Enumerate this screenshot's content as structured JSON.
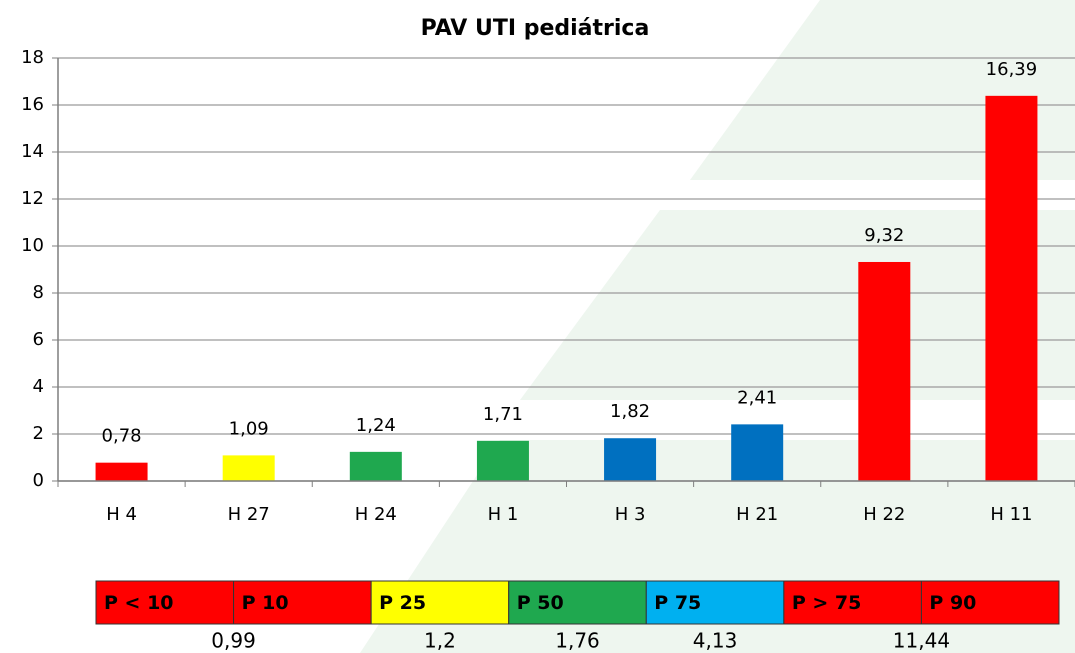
{
  "chart_data": {
    "type": "bar",
    "title": "PAV UTI pediátrica",
    "categories": [
      "H 4",
      "H 27",
      "H 24",
      "H 1",
      "H 3",
      "H 21",
      "H 22",
      "H 11"
    ],
    "values": [
      0.78,
      1.09,
      1.24,
      1.71,
      1.82,
      2.41,
      9.32,
      16.39
    ],
    "value_labels": [
      "0,78",
      "1,09",
      "1,24",
      "1,71",
      "1,82",
      "2,41",
      "9,32",
      "16,39"
    ],
    "colors": [
      "#ff0000",
      "#ffff00",
      "#1fa84f",
      "#1fa84f",
      "#0070c0",
      "#0070c0",
      "#ff0000",
      "#ff0000"
    ],
    "ylim": [
      0,
      18
    ],
    "yticks": [
      0,
      2,
      4,
      6,
      8,
      10,
      12,
      14,
      16,
      18
    ],
    "grid": true
  },
  "percentile_legend": {
    "boxes": [
      {
        "label": "P < 10",
        "color": "#ff0000"
      },
      {
        "label": "P 10",
        "color": "#ff0000"
      },
      {
        "label": "P 25",
        "color": "#ffff00"
      },
      {
        "label": "P 50",
        "color": "#1fa84f"
      },
      {
        "label": "P 75",
        "color": "#00b0f0"
      },
      {
        "label": "P > 75",
        "color": "#ff0000"
      },
      {
        "label": "P 90",
        "color": "#ff0000"
      }
    ],
    "thresholds": [
      "0,99",
      "1,2",
      "1,76",
      "4,13",
      "11,44"
    ]
  }
}
